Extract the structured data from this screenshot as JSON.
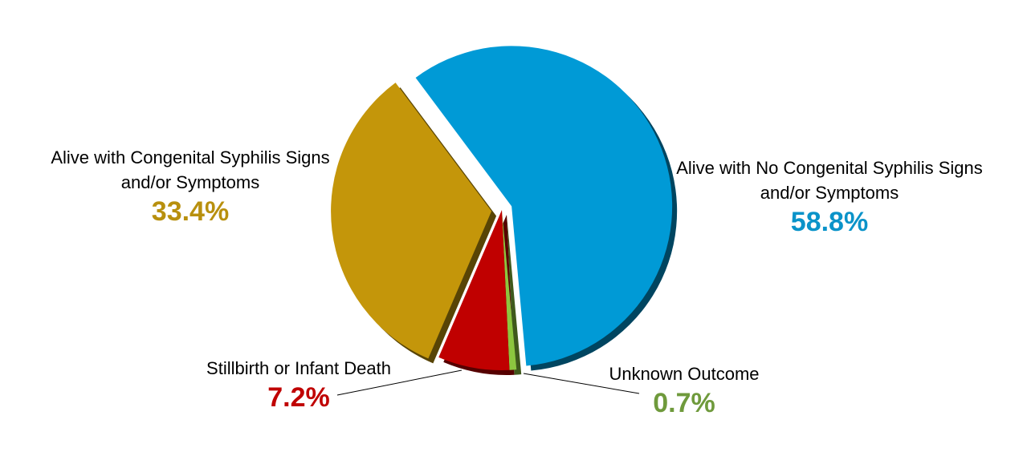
{
  "chart_data": {
    "type": "pie",
    "categories": [
      "Alive with No Congenital Syphilis Signs and/or Symptoms",
      "Unknown Outcome",
      "Stillbirth or Infant Death",
      "Alive with Congenital Syphilis Signs and/or Symptoms"
    ],
    "values": [
      58.8,
      0.7,
      7.2,
      33.4
    ],
    "value_labels": [
      "58.8%",
      "0.7%",
      "7.2%",
      "33.4%"
    ],
    "colors": [
      "#009ad6",
      "#8cc63f",
      "#c00000",
      "#c4960a"
    ],
    "label_colors": [
      "#0a93c9",
      "#6f9a3c",
      "#c00000",
      "#b8900e"
    ]
  }
}
